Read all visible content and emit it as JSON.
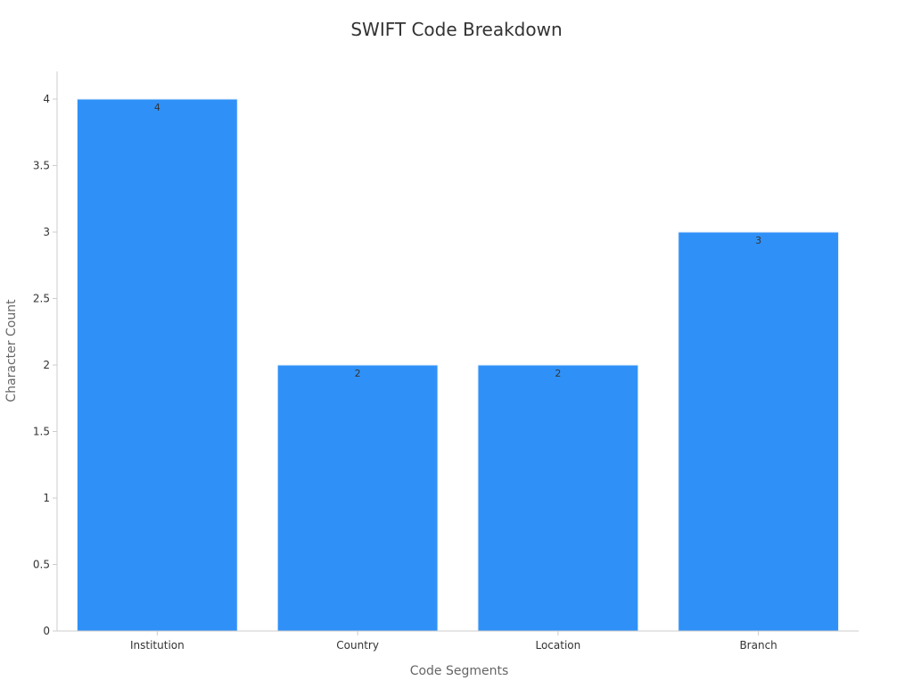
{
  "chart_data": {
    "type": "bar",
    "title": "SWIFT Code Breakdown",
    "xlabel": "Code Segments",
    "ylabel": "Character Count",
    "categories": [
      "Institution",
      "Country",
      "Location",
      "Branch"
    ],
    "values": [
      4,
      2,
      2,
      3
    ],
    "data_labels": [
      "4",
      "2",
      "2",
      "3"
    ],
    "ylim": [
      0,
      4.2
    ],
    "yticks": [
      0,
      0.5,
      1,
      1.5,
      2,
      2.5,
      3,
      3.5,
      4
    ],
    "ytick_labels": [
      "0",
      "0.5",
      "1",
      "1.5",
      "2",
      "2.5",
      "3",
      "3.5",
      "4"
    ],
    "grid": false,
    "colors": {
      "bar": "#2f91f8",
      "axis": "#cccccc",
      "text": "#333333",
      "label": "#666666"
    }
  }
}
